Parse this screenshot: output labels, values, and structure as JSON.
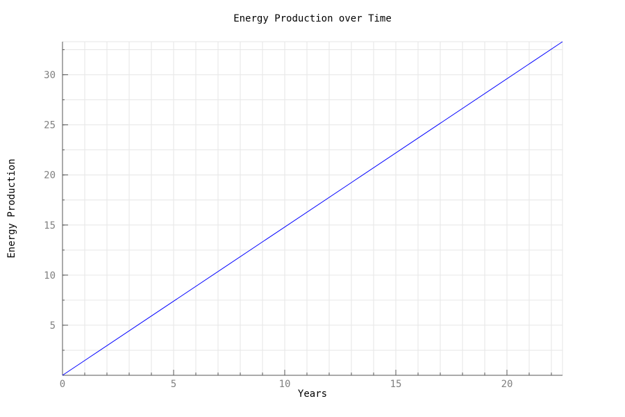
{
  "chart_data": {
    "type": "line",
    "title": "Energy Production over Time",
    "xlabel": "Years",
    "ylabel": "Energy Production",
    "xlim": [
      0,
      22.5
    ],
    "ylim": [
      0,
      33.3
    ],
    "x_ticks": [
      0,
      5,
      10,
      15,
      20
    ],
    "y_ticks": [
      5,
      10,
      15,
      20,
      25,
      30
    ],
    "x_minor_step": 1,
    "y_minor_step": 2.5,
    "grid": true,
    "series": [
      {
        "x": [
          0,
          22.5
        ],
        "y": [
          0,
          33.3
        ],
        "color": "#0000ff"
      }
    ]
  }
}
